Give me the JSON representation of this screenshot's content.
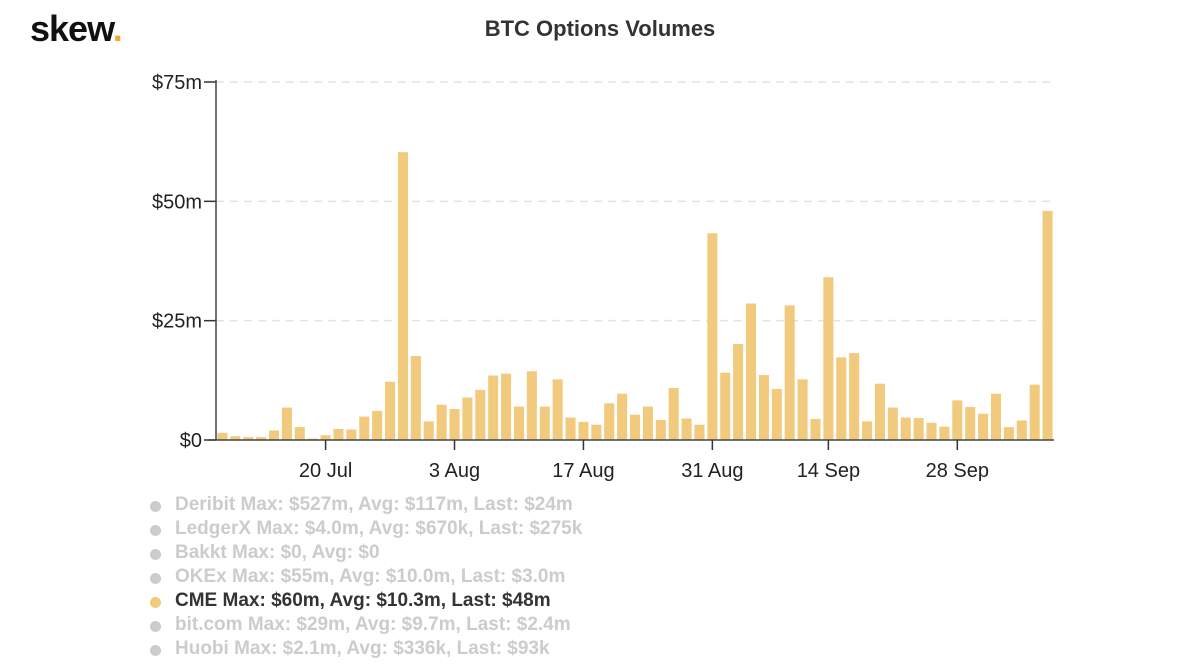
{
  "brand": {
    "name": "skew",
    "dot": "."
  },
  "chart_data": {
    "type": "bar",
    "title": "BTC Options Volumes",
    "xlabel": "",
    "ylabel": "",
    "ylim": [
      0,
      75
    ],
    "y_ticks": [
      {
        "value": 0,
        "label": "$0"
      },
      {
        "value": 25,
        "label": "$25m"
      },
      {
        "value": 50,
        "label": "$50m"
      },
      {
        "value": 75,
        "label": "$75m"
      }
    ],
    "x_ticks": [
      {
        "index": 8,
        "label": "20 Jul"
      },
      {
        "index": 18,
        "label": "3 Aug"
      },
      {
        "index": 28,
        "label": "17 Aug"
      },
      {
        "index": 38,
        "label": "31 Aug"
      },
      {
        "index": 47,
        "label": "14 Sep"
      },
      {
        "index": 57,
        "label": "28 Sep"
      }
    ],
    "grid": true,
    "series": [
      {
        "name": "CME",
        "color": "#f2ca7e",
        "values": [
          1.5,
          0.8,
          0.6,
          0.6,
          2.0,
          6.8,
          2.7,
          0.3,
          1.0,
          2.3,
          2.2,
          4.9,
          6.1,
          12.2,
          60.3,
          17.6,
          3.9,
          7.4,
          6.5,
          8.9,
          10.5,
          13.5,
          13.9,
          7.0,
          14.4,
          7.0,
          12.7,
          4.7,
          3.8,
          3.2,
          7.7,
          9.7,
          5.3,
          7.0,
          4.2,
          10.9,
          4.5,
          3.2,
          43.3,
          14.1,
          20.1,
          28.6,
          13.6,
          10.7,
          28.2,
          12.7,
          4.4,
          34.1,
          17.3,
          18.2,
          3.9,
          11.8,
          6.8,
          4.7,
          4.6,
          3.6,
          2.8,
          8.3,
          6.9,
          5.5,
          9.7,
          2.7,
          4.1,
          11.6,
          48.0
        ]
      }
    ],
    "legend": [
      {
        "name": "Deribit",
        "stats": "Max: $527m, Avg: $117m, Last: $24m",
        "active": false
      },
      {
        "name": "LedgerX",
        "stats": "Max: $4.0m, Avg: $670k, Last: $275k",
        "active": false
      },
      {
        "name": "Bakkt",
        "stats": "Max: $0, Avg: $0",
        "active": false
      },
      {
        "name": "OKEx",
        "stats": "Max: $55m, Avg: $10.0m, Last: $3.0m",
        "active": false
      },
      {
        "name": "CME",
        "stats": "Max: $60m, Avg: $10.3m, Last: $48m",
        "active": true
      },
      {
        "name": "bit.com",
        "stats": "Max: $29m, Avg: $9.7m, Last: $2.4m",
        "active": false
      },
      {
        "name": "Huobi",
        "stats": "Max: $2.1m, Avg: $336k, Last: $93k",
        "active": false
      }
    ]
  }
}
